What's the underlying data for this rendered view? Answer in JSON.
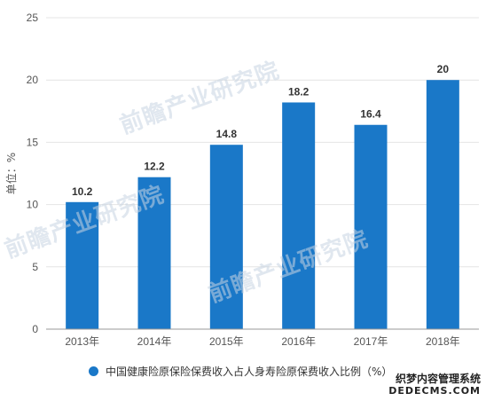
{
  "chart_data": {
    "type": "bar",
    "categories": [
      "2013年",
      "2014年",
      "2015年",
      "2016年",
      "2017年",
      "2018年"
    ],
    "values": [
      10.2,
      12.2,
      14.8,
      18.2,
      16.4,
      20
    ],
    "value_labels": [
      "10.2",
      "12.2",
      "14.8",
      "18.2",
      "16.4",
      "20"
    ],
    "yticks": [
      "0",
      "5",
      "10",
      "15",
      "20",
      "25"
    ],
    "ylim": [
      0,
      25
    ],
    "ylabel": "单位：%",
    "legend": "中国健康险原保险保费收入占人身寿险原保费收入比例（%）",
    "legend_position": "bottom",
    "grid": true,
    "bar_color": "#1a78c8",
    "grid_color": "#e4e4e4"
  },
  "watermarks": [
    "前瞻产业研究院",
    "前瞻产业研究院",
    "前瞻产业研究院"
  ],
  "corner_mark": {
    "line1": "织梦内容管理系统",
    "line2": "DEDECMS.COM"
  }
}
